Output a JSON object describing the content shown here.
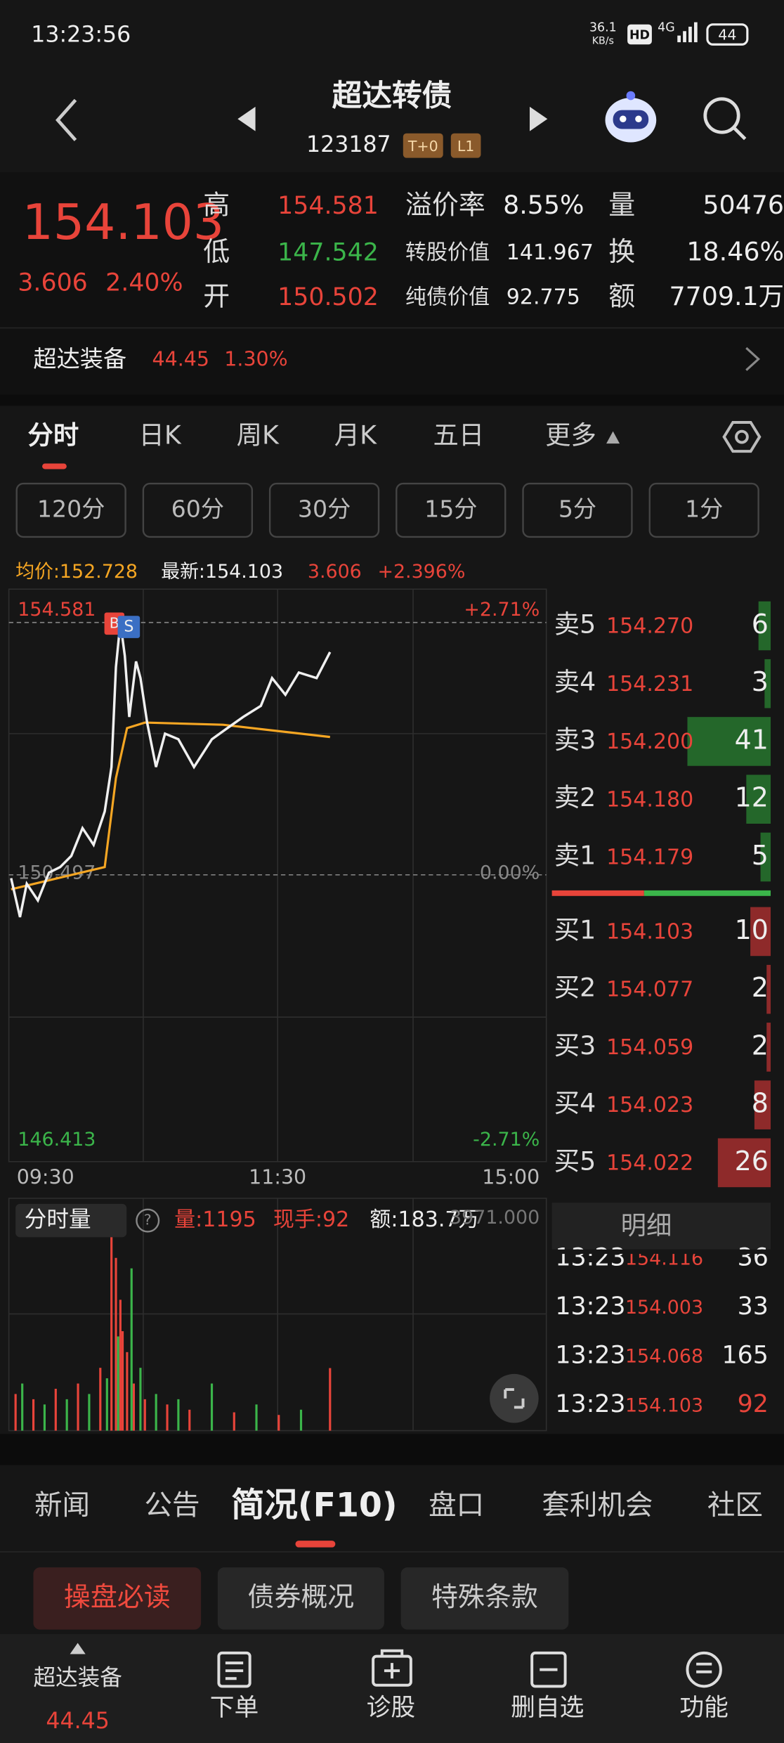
{
  "status": {
    "time": "13:23:56",
    "speed": "36.1",
    "speed_unit": "KB/s",
    "hd": "HD",
    "net": "4G",
    "battery": "44"
  },
  "header": {
    "title": "超达转债",
    "code": "123187",
    "tags": [
      "T+0",
      "L1"
    ]
  },
  "quote": {
    "price": "154.103",
    "change": "3.606",
    "pct": "2.40%",
    "col1": [
      {
        "label": "高",
        "value": "154.581"
      },
      {
        "label": "低",
        "value": "147.542"
      },
      {
        "label": "开",
        "value": "150.502"
      }
    ],
    "col2": [
      {
        "label": "溢价率",
        "value": "8.55%"
      },
      {
        "label": "转股价值",
        "value": "141.967"
      },
      {
        "label": "纯债价值",
        "value": "92.775"
      }
    ],
    "col3": [
      {
        "label": "量",
        "value": "50476"
      },
      {
        "label": "换",
        "value": "18.46%"
      },
      {
        "label": "额",
        "value": "7709.1万"
      }
    ]
  },
  "stock": {
    "name": "超达装备",
    "price": "44.45",
    "pct": "1.30%"
  },
  "tabs": [
    "分时",
    "日K",
    "周K",
    "月K",
    "五日",
    "更多"
  ],
  "periods": [
    "120分",
    "60分",
    "30分",
    "15分",
    "5分",
    "1分"
  ],
  "info": {
    "avg": "均价:152.728",
    "latest": "最新:154.103",
    "change": "3.606",
    "pct": "+2.396%"
  },
  "intraday": {
    "y_top": "154.581",
    "y_mid": "150.497",
    "y_bot": "146.413",
    "pct_top": "+2.71%",
    "pct_mid": "0.00%",
    "pct_bot": "-2.71%",
    "x_labels": [
      "09:30",
      "11:30",
      "15:00"
    ],
    "markers": [
      "B",
      "S"
    ],
    "xlim": [
      0,
      240
    ],
    "ylim": [
      146.413,
      154.581
    ],
    "price": {
      "x": [
        0,
        4,
        7,
        12,
        17,
        22,
        27,
        32,
        37,
        42,
        45,
        47,
        49,
        51,
        53,
        56,
        58,
        61,
        65,
        69,
        75,
        82,
        90,
        97,
        104,
        112,
        117,
        123,
        129,
        137,
        143
      ],
      "values": [
        150.443,
        149.813,
        150.353,
        150.083,
        150.533,
        150.623,
        150.803,
        151.253,
        150.983,
        151.522,
        152.242,
        153.861,
        154.581,
        154.041,
        153.052,
        153.951,
        153.681,
        152.962,
        152.242,
        152.782,
        152.692,
        152.242,
        152.692,
        152.872,
        153.052,
        153.232,
        153.681,
        153.411,
        153.771,
        153.681,
        154.103
      ],
      "color": "#f0f0f0"
    },
    "avg": {
      "x": [
        0,
        42,
        47,
        52,
        60,
        95,
        143
      ],
      "values": [
        150.263,
        150.623,
        152.062,
        152.872,
        152.962,
        152.926,
        152.728
      ],
      "color": "#f5a623"
    }
  },
  "volume": {
    "title": "分时量",
    "help": "?",
    "vol": "量:1195",
    "hand": "现手:92",
    "amount": "额:183.7万",
    "max_label": "3971.000",
    "ylim": [
      0,
      3971
    ],
    "xlim": [
      0,
      240
    ],
    "series": [
      {
        "color": "#e8443a",
        "x": [
          2,
          10,
          20,
          30,
          40,
          45,
          47,
          49,
          50,
          52,
          55,
          60,
          70,
          80,
          100,
          120,
          143
        ],
        "values": [
          700,
          600,
          800,
          900,
          1200,
          3971,
          3300,
          2500,
          1900,
          1500,
          900,
          600,
          500,
          400,
          350,
          300,
          1195
        ]
      },
      {
        "color": "#3bb54a",
        "x": [
          5,
          15,
          25,
          35,
          43,
          48,
          54,
          58,
          65,
          75,
          90,
          110,
          130
        ],
        "values": [
          900,
          500,
          600,
          700,
          1000,
          1800,
          3100,
          1200,
          700,
          600,
          900,
          500,
          400
        ]
      }
    ]
  },
  "book": {
    "max": 41,
    "sell": [
      {
        "label": "卖5",
        "price": "154.270",
        "qty": 6
      },
      {
        "label": "卖4",
        "price": "154.231",
        "qty": 3
      },
      {
        "label": "卖3",
        "price": "154.200",
        "qty": 41
      },
      {
        "label": "卖2",
        "price": "154.180",
        "qty": 12
      },
      {
        "label": "卖1",
        "price": "154.179",
        "qty": 5
      }
    ],
    "buy": [
      {
        "label": "买1",
        "price": "154.103",
        "qty": 10
      },
      {
        "label": "买2",
        "price": "154.077",
        "qty": 2
      },
      {
        "label": "买3",
        "price": "154.059",
        "qty": 2
      },
      {
        "label": "买4",
        "price": "154.023",
        "qty": 8
      },
      {
        "label": "买5",
        "price": "154.022",
        "qty": 26
      }
    ]
  },
  "detail": {
    "title": "明细",
    "rows": [
      [
        "13:23",
        "154.116",
        "36"
      ],
      [
        "13:23",
        "154.003",
        "33"
      ],
      [
        "13:23",
        "154.068",
        "165"
      ],
      [
        "13:23",
        "154.103",
        "92"
      ]
    ]
  },
  "news_tabs": [
    "新闻",
    "公告",
    "简况(F10)",
    "盘口",
    "套利机会",
    "社区"
  ],
  "sub_tabs": [
    "操盘必读",
    "债券概况",
    "特殊条款"
  ],
  "nav": {
    "stock": "超达装备",
    "price": "44.45",
    "items": [
      "下单",
      "诊股",
      "删自选",
      "功能"
    ]
  }
}
